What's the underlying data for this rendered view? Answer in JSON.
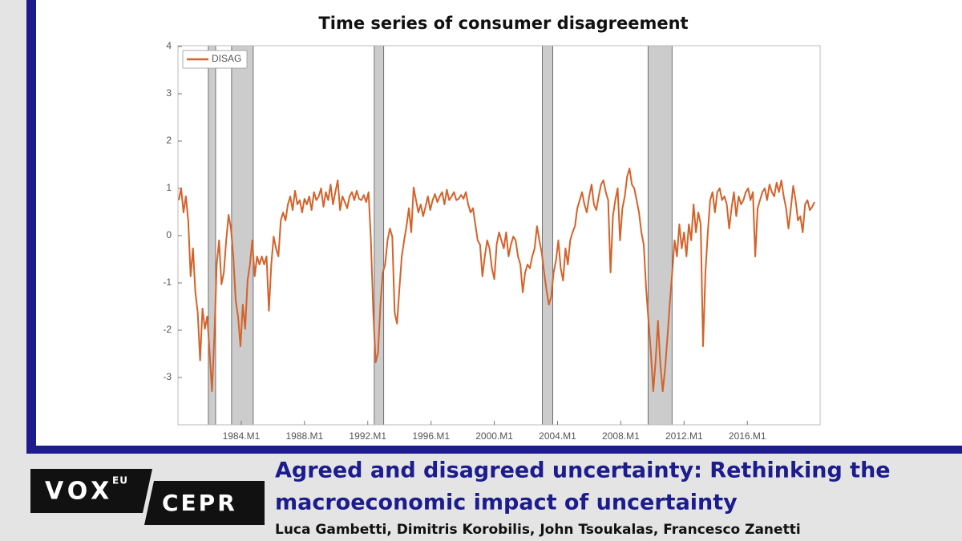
{
  "chart_data": {
    "type": "line",
    "title": "Time series of consumer disagreement",
    "x": [
      1980.05,
      1980.2,
      1980.35,
      1980.5,
      1980.65,
      1980.8,
      1980.95,
      1981.1,
      1981.25,
      1981.4,
      1981.55,
      1981.7,
      1981.85,
      1982,
      1982.15,
      1982.3,
      1982.45,
      1982.6,
      1982.75,
      1982.9,
      1983.05,
      1983.2,
      1983.35,
      1983.5,
      1983.65,
      1983.8,
      1983.95,
      1984.1,
      1984.25,
      1984.4,
      1984.55,
      1984.7,
      1984.85,
      1985,
      1985.15,
      1985.3,
      1985.45,
      1985.6,
      1985.75,
      1985.9,
      1986.05,
      1986.2,
      1986.35,
      1986.5,
      1986.65,
      1986.8,
      1986.95,
      1987.1,
      1987.25,
      1987.4,
      1987.55,
      1987.7,
      1987.85,
      1988,
      1988.15,
      1988.3,
      1988.45,
      1988.6,
      1988.75,
      1988.9,
      1989.05,
      1989.2,
      1989.35,
      1989.5,
      1989.65,
      1989.8,
      1989.95,
      1990.1,
      1990.25,
      1990.4,
      1990.55,
      1990.7,
      1990.85,
      1991,
      1991.15,
      1991.3,
      1991.45,
      1991.6,
      1991.75,
      1991.9,
      1992.05,
      1992.2,
      1992.35,
      1992.5,
      1992.65,
      1992.8,
      1992.95,
      1993.1,
      1993.25,
      1993.4,
      1993.55,
      1993.7,
      1993.85,
      1994,
      1994.15,
      1994.3,
      1994.45,
      1994.6,
      1994.75,
      1994.9,
      1995.05,
      1995.2,
      1995.35,
      1995.5,
      1995.65,
      1995.8,
      1995.95,
      1996.1,
      1996.25,
      1996.4,
      1996.55,
      1996.7,
      1996.85,
      1997,
      1997.15,
      1997.3,
      1997.45,
      1997.6,
      1997.75,
      1997.9,
      1998.05,
      1998.2,
      1998.35,
      1998.5,
      1998.65,
      1998.8,
      1998.95,
      1999.1,
      1999.25,
      1999.4,
      1999.55,
      1999.7,
      1999.85,
      2000,
      2000.15,
      2000.3,
      2000.45,
      2000.6,
      2000.75,
      2000.9,
      2001.05,
      2001.2,
      2001.35,
      2001.5,
      2001.65,
      2001.8,
      2001.95,
      2002.1,
      2002.25,
      2002.4,
      2002.55,
      2002.7,
      2002.85,
      2003,
      2003.15,
      2003.3,
      2003.45,
      2003.6,
      2003.75,
      2003.9,
      2004.05,
      2004.2,
      2004.35,
      2004.5,
      2004.65,
      2004.8,
      2004.95,
      2005.1,
      2005.25,
      2005.4,
      2005.55,
      2005.7,
      2005.85,
      2006,
      2006.15,
      2006.3,
      2006.45,
      2006.6,
      2006.75,
      2006.9,
      2007.05,
      2007.2,
      2007.35,
      2007.5,
      2007.65,
      2007.8,
      2007.95,
      2008.1,
      2008.25,
      2008.4,
      2008.55,
      2008.7,
      2008.85,
      2009,
      2009.15,
      2009.3,
      2009.45,
      2009.6,
      2009.75,
      2009.9,
      2010.05,
      2010.2,
      2010.35,
      2010.5,
      2010.65,
      2010.8,
      2010.95,
      2011.1,
      2011.25,
      2011.4,
      2011.55,
      2011.7,
      2011.85,
      2012,
      2012.15,
      2012.3,
      2012.45,
      2012.6,
      2012.75,
      2012.9,
      2013.05,
      2013.2,
      2013.35,
      2013.5,
      2013.65,
      2013.8,
      2013.95,
      2014.1,
      2014.25,
      2014.4,
      2014.55,
      2014.7,
      2014.85,
      2015,
      2015.15,
      2015.3,
      2015.45,
      2015.6,
      2015.75,
      2015.9,
      2016.05,
      2016.2,
      2016.35,
      2016.5,
      2016.65,
      2016.8,
      2016.95,
      2017.1,
      2017.25,
      2017.4,
      2017.55,
      2017.7,
      2017.85,
      2018,
      2018.15,
      2018.3,
      2018.45,
      2018.6,
      2018.75,
      2018.9,
      2019.05,
      2019.2,
      2019.35,
      2019.5,
      2019.65,
      2019.8,
      2019.95,
      2020.1,
      2020.25
    ],
    "series": [
      {
        "name": "DISAG",
        "color": "#d4622a",
        "values": [
          0.75,
          1.0,
          0.49,
          0.83,
          0.32,
          -0.86,
          -0.27,
          -1.2,
          -1.63,
          -2.64,
          -1.54,
          -1.97,
          -1.71,
          -2.47,
          -3.29,
          -2.14,
          -0.61,
          -0.1,
          -1.03,
          -0.78,
          -0.1,
          0.44,
          0.15,
          -0.44,
          -1.37,
          -1.71,
          -2.34,
          -1.46,
          -1.97,
          -0.95,
          -0.61,
          -0.1,
          -0.86,
          -0.44,
          -0.61,
          -0.44,
          -0.61,
          -0.44,
          -1.59,
          -0.61,
          -0.02,
          -0.27,
          -0.44,
          0.32,
          0.49,
          0.32,
          0.66,
          0.83,
          0.54,
          0.95,
          0.66,
          0.75,
          0.49,
          0.78,
          0.66,
          0.83,
          0.54,
          0.92,
          0.75,
          0.83,
          1.0,
          0.61,
          0.92,
          0.75,
          1.08,
          0.66,
          0.92,
          1.17,
          0.54,
          0.83,
          0.71,
          0.58,
          0.83,
          0.92,
          0.75,
          0.95,
          0.78,
          0.75,
          0.86,
          0.71,
          0.92,
          -0.1,
          -1.63,
          -2.68,
          -2.47,
          -1.46,
          -0.78,
          -0.61,
          -0.1,
          0.15,
          -0.02,
          -1.63,
          -1.86,
          -1.12,
          -0.44,
          -0.1,
          0.2,
          0.58,
          0.07,
          1.02,
          0.75,
          0.49,
          0.66,
          0.41,
          0.61,
          0.83,
          0.54,
          0.75,
          0.88,
          0.71,
          0.83,
          0.92,
          0.66,
          0.97,
          0.75,
          0.83,
          0.92,
          0.75,
          0.78,
          0.86,
          0.78,
          0.92,
          0.66,
          0.49,
          0.58,
          0.24,
          -0.1,
          -0.19,
          -0.86,
          -0.44,
          -0.1,
          -0.27,
          -0.69,
          -0.92,
          -0.19,
          0.07,
          -0.1,
          -0.27,
          0.07,
          -0.44,
          -0.19,
          -0.02,
          -0.1,
          -0.44,
          -0.61,
          -1.2,
          -0.78,
          -0.61,
          -0.69,
          -0.44,
          -0.27,
          0.2,
          -0.1,
          -0.36,
          -0.78,
          -1.15,
          -1.46,
          -1.29,
          -0.78,
          -0.53,
          -0.1,
          -0.69,
          -0.95,
          -0.27,
          -0.61,
          -0.1,
          0.07,
          0.2,
          0.58,
          0.75,
          0.92,
          0.66,
          0.49,
          0.83,
          1.08,
          0.66,
          0.54,
          0.83,
          1.08,
          1.17,
          0.92,
          0.75,
          -0.78,
          0.41,
          0.75,
          1.0,
          -0.1,
          0.58,
          0.83,
          1.25,
          1.42,
          1.08,
          1.0,
          0.75,
          0.49,
          0.07,
          -0.19,
          -1.12,
          -1.8,
          -2.47,
          -3.29,
          -2.64,
          -1.8,
          -2.73,
          -3.29,
          -2.81,
          -2.14,
          -1.42,
          -0.78,
          -0.1,
          -0.44,
          0.24,
          -0.27,
          0.07,
          -0.44,
          0.24,
          -0.1,
          0.66,
          0.07,
          0.49,
          0.24,
          -2.34,
          -0.78,
          0.07,
          0.75,
          0.92,
          0.49,
          0.92,
          1.0,
          0.75,
          0.83,
          0.66,
          0.15,
          0.58,
          0.92,
          0.41,
          0.83,
          0.66,
          0.75,
          0.92,
          1.0,
          0.75,
          0.92,
          -0.44,
          0.58,
          0.75,
          0.92,
          1.0,
          0.75,
          1.08,
          0.92,
          0.83,
          1.12,
          0.92,
          1.17,
          0.83,
          0.58,
          0.15,
          0.58,
          1.05,
          0.75,
          0.32,
          0.41,
          0.07,
          0.66,
          0.75,
          0.54,
          0.61,
          0.71
        ]
      }
    ],
    "shaded_periods": [
      {
        "start": 1981.92,
        "end": 1982.38
      },
      {
        "start": 1983.39,
        "end": 1984.76
      },
      {
        "start": 1992.41,
        "end": 1993.01
      },
      {
        "start": 2003.04,
        "end": 2003.7
      },
      {
        "start": 2009.72,
        "end": 2011.24
      }
    ],
    "shade_color": "#cccccc",
    "xlim": [
      1980,
      2020.6
    ],
    "xticks": [
      {
        "value": 1984,
        "label": "1984.M1"
      },
      {
        "value": 1988,
        "label": "1988.M1"
      },
      {
        "value": 1992,
        "label": "1992.M1"
      },
      {
        "value": 1996,
        "label": "1996.M1"
      },
      {
        "value": 2000,
        "label": "2000.M1"
      },
      {
        "value": 2004,
        "label": "2004.M1"
      },
      {
        "value": 2008,
        "label": "2008.M1"
      },
      {
        "value": 2012,
        "label": "2012.M1"
      },
      {
        "value": 2016,
        "label": "2016.M1"
      }
    ],
    "ylim": [
      -4,
      4
    ],
    "yticks": [
      -3,
      -2,
      -1,
      0,
      1,
      2,
      3,
      4
    ],
    "legend": "upper left",
    "grid": false
  },
  "banner": {
    "logo": {
      "vox": "VOX",
      "eu": "EU",
      "cepr": "CEPR"
    },
    "headline": [
      "Agreed and disagreed uncertainty: Rethinking the",
      "macroeconomic impact of uncertainty"
    ],
    "authors": "Luca Gambetti, Dimitris Korobilis, John Tsoukalas, Francesco Zanetti"
  }
}
